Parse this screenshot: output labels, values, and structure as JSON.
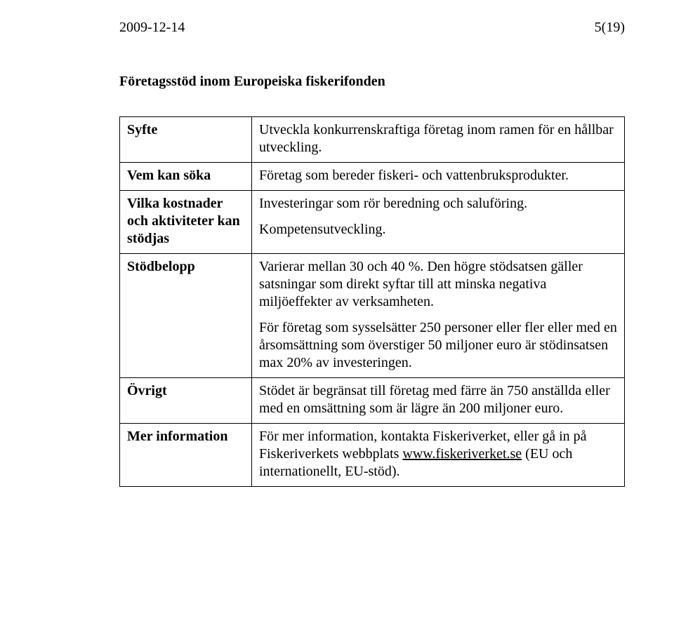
{
  "header": {
    "date": "2009-12-14",
    "page": "5(19)"
  },
  "title": "Företagsstöd inom Europeiska fiskerifonden",
  "rows": {
    "r1": {
      "label": "Syfte",
      "body": "Utveckla konkurrenskraftiga företag inom ramen för en hållbar utveckling."
    },
    "r2": {
      "label": "Vem kan söka",
      "body": "Företag som bereder fiskeri- och vattenbruksprodukter."
    },
    "r3": {
      "label": "Vilka kostnader och aktiviteter kan stödjas",
      "p1": "Investeringar som rör beredning och saluföring.",
      "p2": "Kompetensutveckling."
    },
    "r4": {
      "label": "Stödbelopp",
      "p1": "Varierar mellan 30 och 40 %. Den högre stödsatsen gäller satsningar som direkt syftar till att minska negativa miljöeffekter av verksamheten.",
      "p2": "För företag som sysselsätter 250 personer eller fler eller med en årsomsättning som överstiger 50 miljoner euro är stödinsatsen max 20% av investeringen."
    },
    "r5": {
      "label": "Övrigt",
      "body": "Stödet är begränsat till företag med färre än 750 anställda eller med en omsättning som är lägre än 200 miljoner euro."
    },
    "r6": {
      "label": "Mer information",
      "pre": "För mer information, kontakta Fiskeriverket, eller gå in på Fiskeriverkets webbplats ",
      "link": "www.fiskeriverket.se",
      "post": " (EU och internationellt, EU-stöd)."
    }
  }
}
